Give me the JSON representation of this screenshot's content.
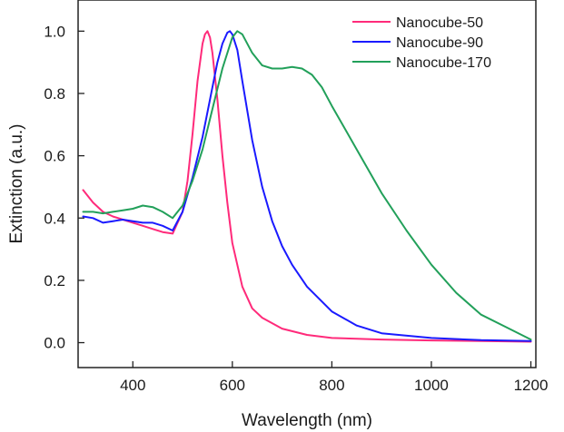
{
  "chart_data": {
    "type": "line",
    "title": "",
    "xlabel": "Wavelength (nm)",
    "ylabel": "Extinction (a.u.)",
    "xlim": [
      290,
      1210
    ],
    "ylim": [
      -0.08,
      1.1
    ],
    "xticks": [
      400,
      600,
      800,
      1000,
      1200
    ],
    "xtick_labels": [
      "400",
      "600",
      "800",
      "1000",
      "1200"
    ],
    "yticks": [
      0.0,
      0.2,
      0.4,
      0.6,
      0.8,
      1.0
    ],
    "ytick_labels": [
      "0.0",
      "0.2",
      "0.4",
      "0.6",
      "0.8",
      "1.0"
    ],
    "grid": false,
    "legend_position": "top-right",
    "series": [
      {
        "name": "Nanocube-50",
        "color": "#ff2a7a",
        "x": [
          300,
          320,
          340,
          360,
          380,
          400,
          420,
          440,
          460,
          480,
          500,
          510,
          520,
          530,
          540,
          545,
          550,
          555,
          560,
          570,
          580,
          590,
          600,
          620,
          640,
          660,
          700,
          750,
          800,
          900,
          1000,
          1100,
          1200
        ],
        "y": [
          0.49,
          0.45,
          0.42,
          0.405,
          0.395,
          0.385,
          0.375,
          0.365,
          0.355,
          0.35,
          0.42,
          0.52,
          0.67,
          0.84,
          0.96,
          0.99,
          1.0,
          0.98,
          0.93,
          0.78,
          0.6,
          0.45,
          0.32,
          0.18,
          0.11,
          0.08,
          0.045,
          0.025,
          0.015,
          0.01,
          0.007,
          0.005,
          0.003
        ]
      },
      {
        "name": "Nanocube-90",
        "color": "#1a1aff",
        "x": [
          300,
          320,
          340,
          360,
          380,
          400,
          420,
          440,
          460,
          480,
          500,
          520,
          540,
          560,
          570,
          580,
          590,
          595,
          600,
          610,
          620,
          640,
          660,
          680,
          700,
          720,
          750,
          800,
          850,
          900,
          1000,
          1100,
          1200
        ],
        "y": [
          0.405,
          0.4,
          0.385,
          0.39,
          0.395,
          0.39,
          0.385,
          0.385,
          0.375,
          0.36,
          0.42,
          0.53,
          0.66,
          0.82,
          0.9,
          0.96,
          0.995,
          1.0,
          0.99,
          0.94,
          0.84,
          0.65,
          0.5,
          0.39,
          0.31,
          0.25,
          0.18,
          0.1,
          0.055,
          0.03,
          0.015,
          0.008,
          0.005
        ]
      },
      {
        "name": "Nanocube-170",
        "color": "#22a05a",
        "x": [
          300,
          320,
          340,
          360,
          380,
          400,
          420,
          440,
          460,
          480,
          500,
          520,
          540,
          560,
          580,
          600,
          610,
          620,
          640,
          660,
          680,
          700,
          720,
          740,
          760,
          780,
          800,
          850,
          900,
          950,
          1000,
          1050,
          1100,
          1150,
          1200
        ],
        "y": [
          0.42,
          0.42,
          0.415,
          0.42,
          0.425,
          0.43,
          0.44,
          0.435,
          0.42,
          0.4,
          0.44,
          0.52,
          0.62,
          0.75,
          0.88,
          0.98,
          1.0,
          0.99,
          0.93,
          0.89,
          0.88,
          0.88,
          0.885,
          0.88,
          0.86,
          0.82,
          0.76,
          0.62,
          0.48,
          0.36,
          0.25,
          0.16,
          0.09,
          0.05,
          0.01
        ]
      }
    ]
  }
}
